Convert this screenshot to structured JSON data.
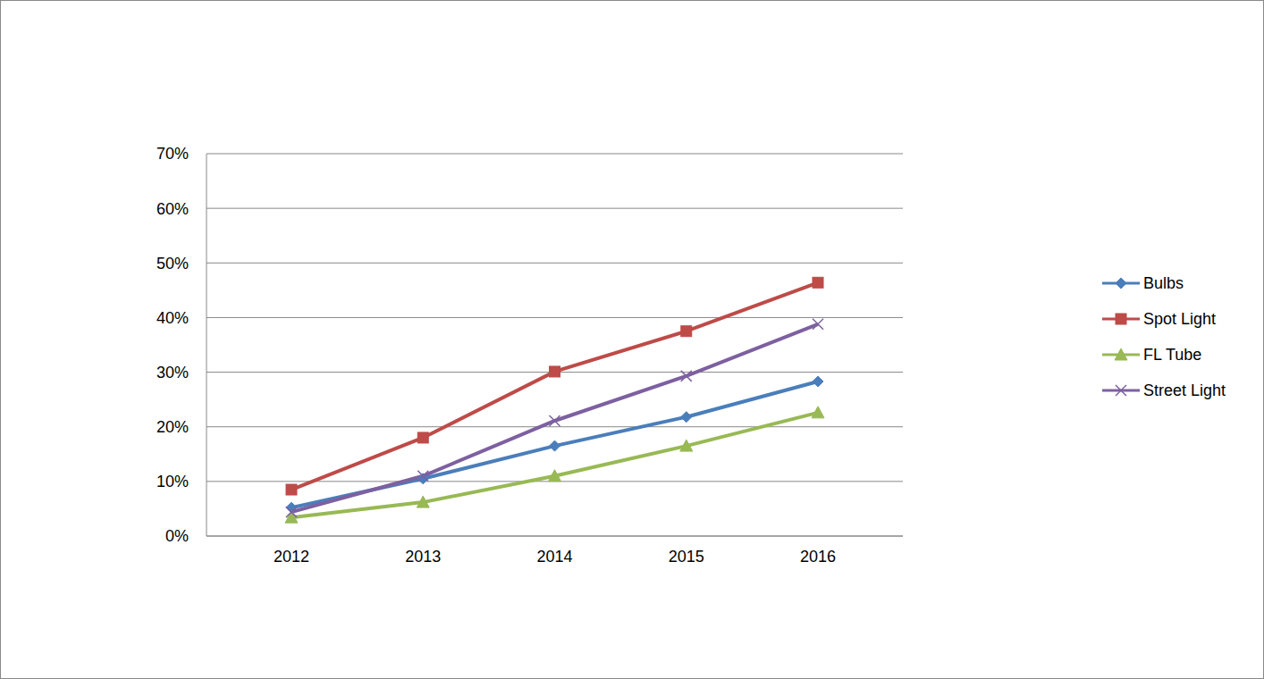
{
  "chart_data": {
    "type": "line",
    "categories": [
      "2012",
      "2013",
      "2014",
      "2015",
      "2016"
    ],
    "series": [
      {
        "name": "Bulbs",
        "color": "#4a7ebb",
        "marker": "diamond",
        "values": [
          5.2,
          10.5,
          16.5,
          21.8,
          28.3
        ]
      },
      {
        "name": "Spot Light",
        "color": "#be4b48",
        "marker": "square",
        "values": [
          8.5,
          18.0,
          30.1,
          37.5,
          46.4
        ]
      },
      {
        "name": "FL Tube",
        "color": "#98b954",
        "marker": "triangle",
        "values": [
          3.4,
          6.2,
          11.0,
          16.5,
          22.6
        ]
      },
      {
        "name": "Street Light",
        "color": "#7d60a0",
        "marker": "x",
        "values": [
          4.4,
          11.0,
          21.1,
          29.3,
          38.8
        ]
      }
    ],
    "ylim": [
      0,
      70
    ],
    "yticks": [
      {
        "value": 0,
        "label": "0%"
      },
      {
        "value": 10,
        "label": "10%"
      },
      {
        "value": 20,
        "label": "20%"
      },
      {
        "value": 30,
        "label": "30%"
      },
      {
        "value": 40,
        "label": "40%"
      },
      {
        "value": 50,
        "label": "50%"
      },
      {
        "value": 60,
        "label": "60%"
      },
      {
        "value": 70,
        "label": "70%"
      }
    ],
    "grid": true,
    "legend": "right"
  }
}
